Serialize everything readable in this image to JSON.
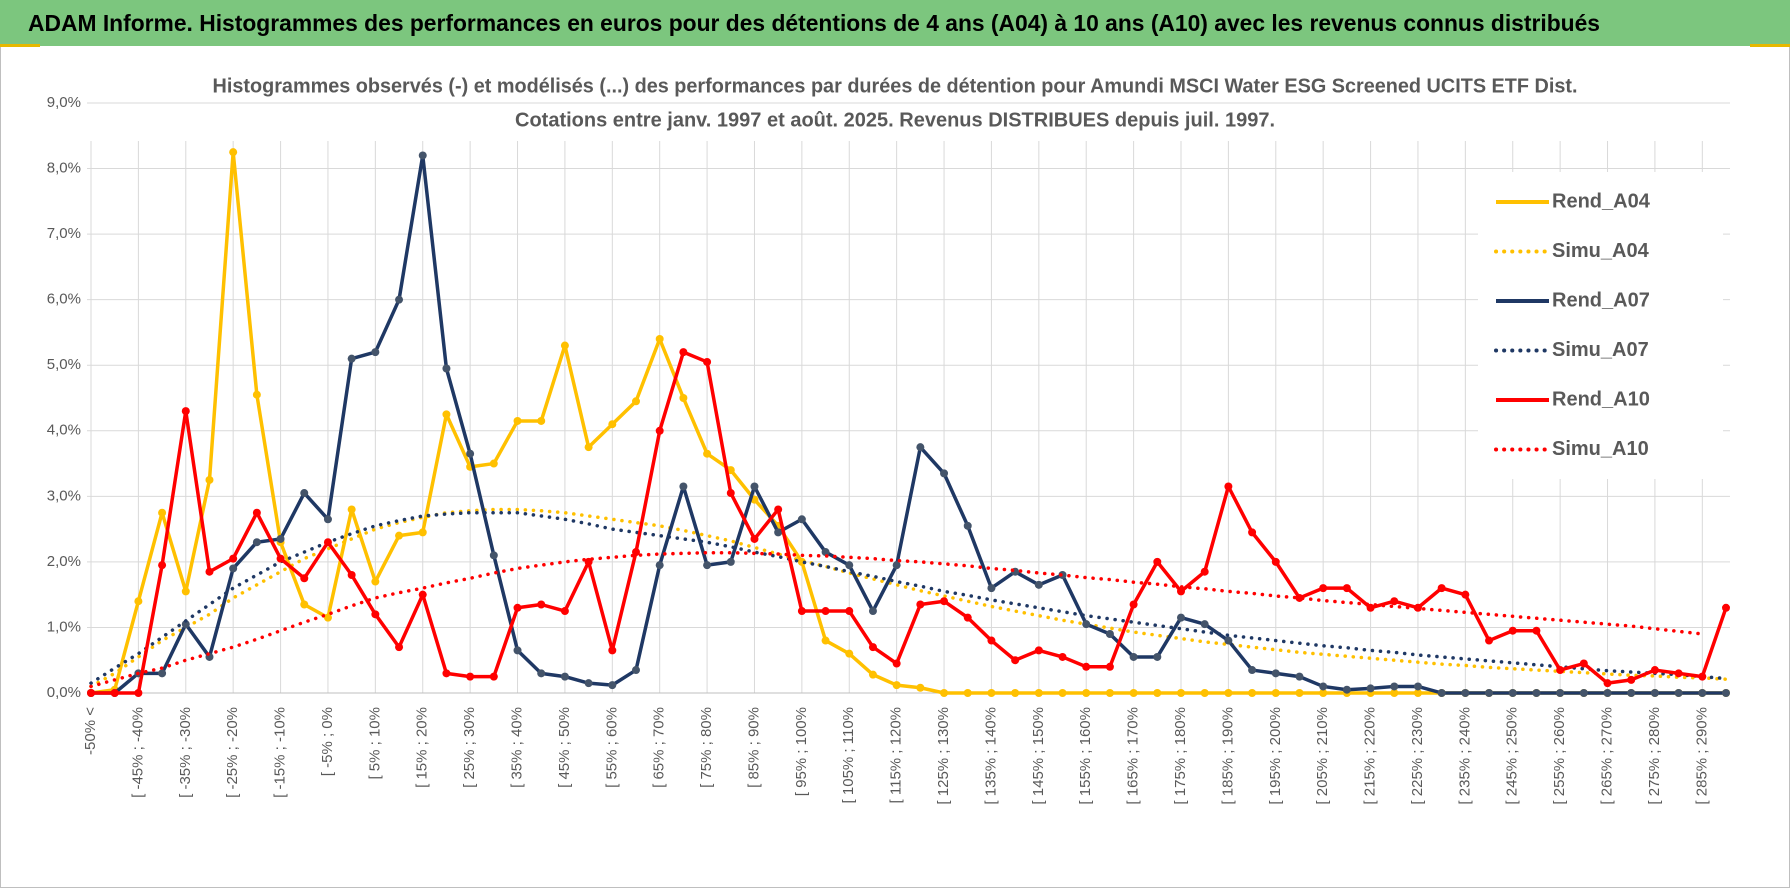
{
  "header": {
    "title": "ADAM Informe. Histogrammes des performances en euros pour des détentions de 4 ans (A04) à 10 ans (A10) avec les revenus connus distribués"
  },
  "chart_data": {
    "type": "line",
    "title": "Histogrammes observés (-) et modélisés (...) des performances par durées de détention pour Amundi MSCI Water ESG Screened UCITS ETF Dist.",
    "subtitle": "Cotations entre janv. 1997 et août. 2025. Revenus DISTRIBUES depuis juil. 1997.",
    "categories": [
      "-50% <",
      null,
      "[ -45% ; -40%",
      null,
      "[ -35% ; -30%",
      null,
      "[ -25% ; -20%",
      null,
      "[ -15% ; -10%",
      null,
      "[ -5% ; 0%",
      null,
      "[ 5% ; 10%",
      null,
      "[ 15% ; 20%",
      null,
      "[ 25% ; 30%",
      null,
      "[ 35% ; 40%",
      null,
      "[ 45% ; 50%",
      null,
      "[ 55% ; 60%",
      null,
      "[ 65% ; 70%",
      null,
      "[ 75% ; 80%",
      null,
      "[ 85% ; 90%",
      null,
      "[ 95% ; 100%",
      null,
      "[ 105% ; 110%",
      null,
      "[ 115% ; 120%",
      null,
      "[ 125% ; 130%",
      null,
      "[ 135% ; 140%",
      null,
      "[ 145% ; 150%",
      null,
      "[ 155% ; 160%",
      null,
      "[ 165% ; 170%",
      null,
      "[ 175% ; 180%",
      null,
      "[ 185% ; 190%",
      null,
      "[ 195% ; 200%",
      null,
      "[ 205% ; 210%",
      null,
      "[ 215% ; 220%",
      null,
      "[ 225% ; 230%",
      null,
      "[ 235% ; 240%",
      null,
      "[ 245% ; 250%",
      null,
      "[ 255% ; 260%",
      null,
      "[ 265% ; 270%",
      null,
      "[ 275% ; 280%",
      null,
      "[ 285% ; 290%",
      null
    ],
    "series": [
      {
        "name": "Rend_A04",
        "color": "#ffc000",
        "marker_color": "#ffc000",
        "style": "solid",
        "markers": true,
        "values": [
          0,
          0.05,
          1.4,
          2.75,
          1.55,
          3.25,
          8.25,
          4.55,
          2.3,
          1.35,
          1.15,
          2.8,
          1.7,
          2.4,
          2.45,
          4.25,
          3.45,
          3.5,
          4.15,
          4.15,
          5.3,
          3.75,
          4.1,
          4.45,
          5.4,
          4.5,
          3.65,
          3.4,
          2.95,
          2.55,
          2.0,
          0.8,
          0.6,
          0.28,
          0.12,
          0.08,
          0,
          0,
          0,
          0,
          0,
          0,
          0,
          0,
          0,
          0,
          0,
          0,
          0,
          0,
          0,
          0,
          0,
          0,
          0,
          0,
          0,
          0,
          0,
          0,
          0,
          0,
          0,
          0,
          0,
          0,
          0,
          0,
          0,
          0
        ]
      },
      {
        "name": "Simu_A04",
        "color": "#ffc000",
        "style": "dotted",
        "markers": false,
        "values": [
          0.1,
          0.3,
          0.55,
          0.8,
          1.0,
          1.2,
          1.45,
          1.65,
          1.85,
          2.05,
          2.2,
          2.35,
          2.5,
          2.6,
          2.68,
          2.75,
          2.78,
          2.8,
          2.8,
          2.78,
          2.75,
          2.7,
          2.65,
          2.6,
          2.55,
          2.48,
          2.4,
          2.32,
          2.22,
          2.12,
          2.02,
          1.93,
          1.83,
          1.74,
          1.65,
          1.56,
          1.48,
          1.4,
          1.32,
          1.25,
          1.18,
          1.11,
          1.05,
          0.99,
          0.93,
          0.88,
          0.83,
          0.78,
          0.74,
          0.7,
          0.66,
          0.62,
          0.59,
          0.56,
          0.53,
          0.5,
          0.47,
          0.44,
          0.42,
          0.39,
          0.37,
          0.35,
          0.33,
          0.31,
          0.29,
          0.27,
          0.26,
          0.24,
          0.23,
          0.21
        ]
      },
      {
        "name": "Rend_A07",
        "color": "#1f3864",
        "marker_color": "#44546a",
        "style": "solid",
        "markers": true,
        "values": [
          0,
          0,
          0.3,
          0.3,
          1.05,
          0.55,
          1.9,
          2.3,
          2.35,
          3.05,
          2.65,
          5.1,
          5.2,
          6.0,
          8.2,
          4.95,
          3.65,
          2.1,
          0.65,
          0.3,
          0.25,
          0.15,
          0.12,
          0.35,
          1.95,
          3.15,
          1.95,
          2.0,
          3.15,
          2.45,
          2.65,
          2.15,
          1.95,
          1.25,
          1.95,
          3.75,
          3.35,
          2.55,
          1.6,
          1.85,
          1.65,
          1.8,
          1.05,
          0.9,
          0.55,
          0.55,
          1.15,
          1.05,
          0.8,
          0.35,
          0.3,
          0.25,
          0.1,
          0.05,
          0.07,
          0.1,
          0.1,
          0,
          0,
          0,
          0,
          0,
          0,
          0,
          0,
          0,
          0,
          0,
          0,
          0
        ]
      },
      {
        "name": "Simu_A07",
        "color": "#1f3864",
        "style": "dotted",
        "markers": false,
        "values": [
          0.15,
          0.38,
          0.6,
          0.85,
          1.1,
          1.35,
          1.6,
          1.8,
          2.0,
          2.15,
          2.3,
          2.43,
          2.55,
          2.63,
          2.7,
          2.73,
          2.75,
          2.75,
          2.75,
          2.7,
          2.65,
          2.58,
          2.5,
          2.45,
          2.4,
          2.35,
          2.3,
          2.23,
          2.15,
          2.08,
          2.0,
          1.93,
          1.85,
          1.78,
          1.7,
          1.63,
          1.55,
          1.49,
          1.42,
          1.36,
          1.3,
          1.24,
          1.18,
          1.13,
          1.08,
          1.03,
          0.98,
          0.93,
          0.88,
          0.84,
          0.8,
          0.76,
          0.72,
          0.69,
          0.65,
          0.62,
          0.58,
          0.55,
          0.52,
          0.49,
          0.46,
          0.43,
          0.4,
          0.37,
          0.34,
          0.32,
          0.3,
          0.28,
          0.25,
          0.22
        ]
      },
      {
        "name": "Rend_A10",
        "color": "#ff0000",
        "marker_color": "#ff0000",
        "style": "solid",
        "markers": true,
        "values": [
          0,
          0,
          0,
          1.95,
          4.3,
          1.85,
          2.05,
          2.75,
          2.05,
          1.75,
          2.3,
          1.8,
          1.2,
          0.7,
          1.5,
          0.3,
          0.25,
          0.25,
          1.3,
          1.35,
          1.25,
          2.0,
          0.65,
          2.15,
          4.0,
          5.2,
          5.05,
          3.05,
          2.35,
          2.8,
          1.25,
          1.25,
          1.25,
          0.7,
          0.45,
          1.35,
          1.4,
          1.15,
          0.8,
          0.5,
          0.65,
          0.55,
          0.4,
          0.4,
          1.35,
          2.0,
          1.55,
          1.85,
          3.15,
          2.45,
          2.0,
          1.45,
          1.6,
          1.6,
          1.3,
          1.4,
          1.3,
          1.6,
          1.5,
          0.8,
          0.95,
          0.95,
          0.35,
          0.45,
          0.15,
          0.2,
          0.35,
          0.3,
          0.25,
          1.3
        ]
      },
      {
        "name": "Simu_A10",
        "color": "#ff0000",
        "style": "dotted",
        "markers": false,
        "values": [
          0.1,
          0.2,
          0.3,
          0.38,
          0.5,
          0.6,
          0.7,
          0.82,
          0.95,
          1.08,
          1.2,
          1.33,
          1.45,
          1.53,
          1.6,
          1.68,
          1.75,
          1.83,
          1.9,
          1.95,
          2.0,
          2.04,
          2.07,
          2.1,
          2.12,
          2.13,
          2.14,
          2.14,
          2.13,
          2.12,
          2.1,
          2.09,
          2.07,
          2.05,
          2.02,
          2.0,
          1.97,
          1.94,
          1.9,
          1.87,
          1.83,
          1.8,
          1.76,
          1.73,
          1.69,
          1.66,
          1.62,
          1.59,
          1.55,
          1.52,
          1.48,
          1.45,
          1.41,
          1.38,
          1.35,
          1.32,
          1.29,
          1.26,
          1.23,
          1.2,
          1.17,
          1.14,
          1.11,
          1.08,
          1.05,
          1.02,
          0.98,
          0.94,
          0.9,
          null
        ]
      }
    ],
    "ylim": [
      0,
      9
    ],
    "yticks": [
      {
        "value": 0,
        "label": "0,0%"
      },
      {
        "value": 1,
        "label": "1,0%"
      },
      {
        "value": 2,
        "label": "2,0%"
      },
      {
        "value": 3,
        "label": "3,0%"
      },
      {
        "value": 4,
        "label": "4,0%"
      },
      {
        "value": 5,
        "label": "5,0%"
      },
      {
        "value": 6,
        "label": "6,0%"
      },
      {
        "value": 7,
        "label": "7,0%"
      },
      {
        "value": 8,
        "label": "8,0%"
      },
      {
        "value": 9,
        "label": "9,0%"
      }
    ],
    "grid": true,
    "legend": "upper-right"
  }
}
